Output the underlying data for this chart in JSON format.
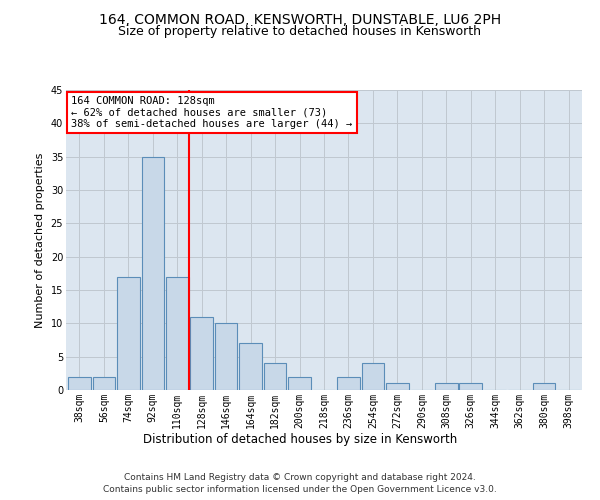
{
  "title1": "164, COMMON ROAD, KENSWORTH, DUNSTABLE, LU6 2PH",
  "title2": "Size of property relative to detached houses in Kensworth",
  "xlabel": "Distribution of detached houses by size in Kensworth",
  "ylabel": "Number of detached properties",
  "footnote1": "Contains HM Land Registry data © Crown copyright and database right 2024.",
  "footnote2": "Contains public sector information licensed under the Open Government Licence v3.0.",
  "bar_labels": [
    "38sqm",
    "56sqm",
    "74sqm",
    "92sqm",
    "110sqm",
    "128sqm",
    "146sqm",
    "164sqm",
    "182sqm",
    "200sqm",
    "218sqm",
    "236sqm",
    "254sqm",
    "272sqm",
    "290sqm",
    "308sqm",
    "326sqm",
    "344sqm",
    "362sqm",
    "380sqm",
    "398sqm"
  ],
  "bar_values": [
    2,
    2,
    17,
    35,
    17,
    11,
    10,
    7,
    4,
    2,
    0,
    2,
    4,
    1,
    0,
    1,
    1,
    0,
    0,
    1,
    0
  ],
  "bar_color": "#c8d8e8",
  "bar_edge_color": "#5b8db8",
  "vline_index": 5,
  "vline_color": "red",
  "annotation_text": "164 COMMON ROAD: 128sqm\n← 62% of detached houses are smaller (73)\n38% of semi-detached houses are larger (44) →",
  "annotation_box_facecolor": "white",
  "annotation_box_edgecolor": "red",
  "ylim": [
    0,
    45
  ],
  "yticks": [
    0,
    5,
    10,
    15,
    20,
    25,
    30,
    35,
    40,
    45
  ],
  "grid_color": "#c0c8d0",
  "bg_color": "#dce6f0",
  "title1_fontsize": 10,
  "title2_fontsize": 9,
  "xlabel_fontsize": 8.5,
  "ylabel_fontsize": 8,
  "tick_fontsize": 7,
  "annotation_fontsize": 7.5,
  "footnote_fontsize": 6.5
}
